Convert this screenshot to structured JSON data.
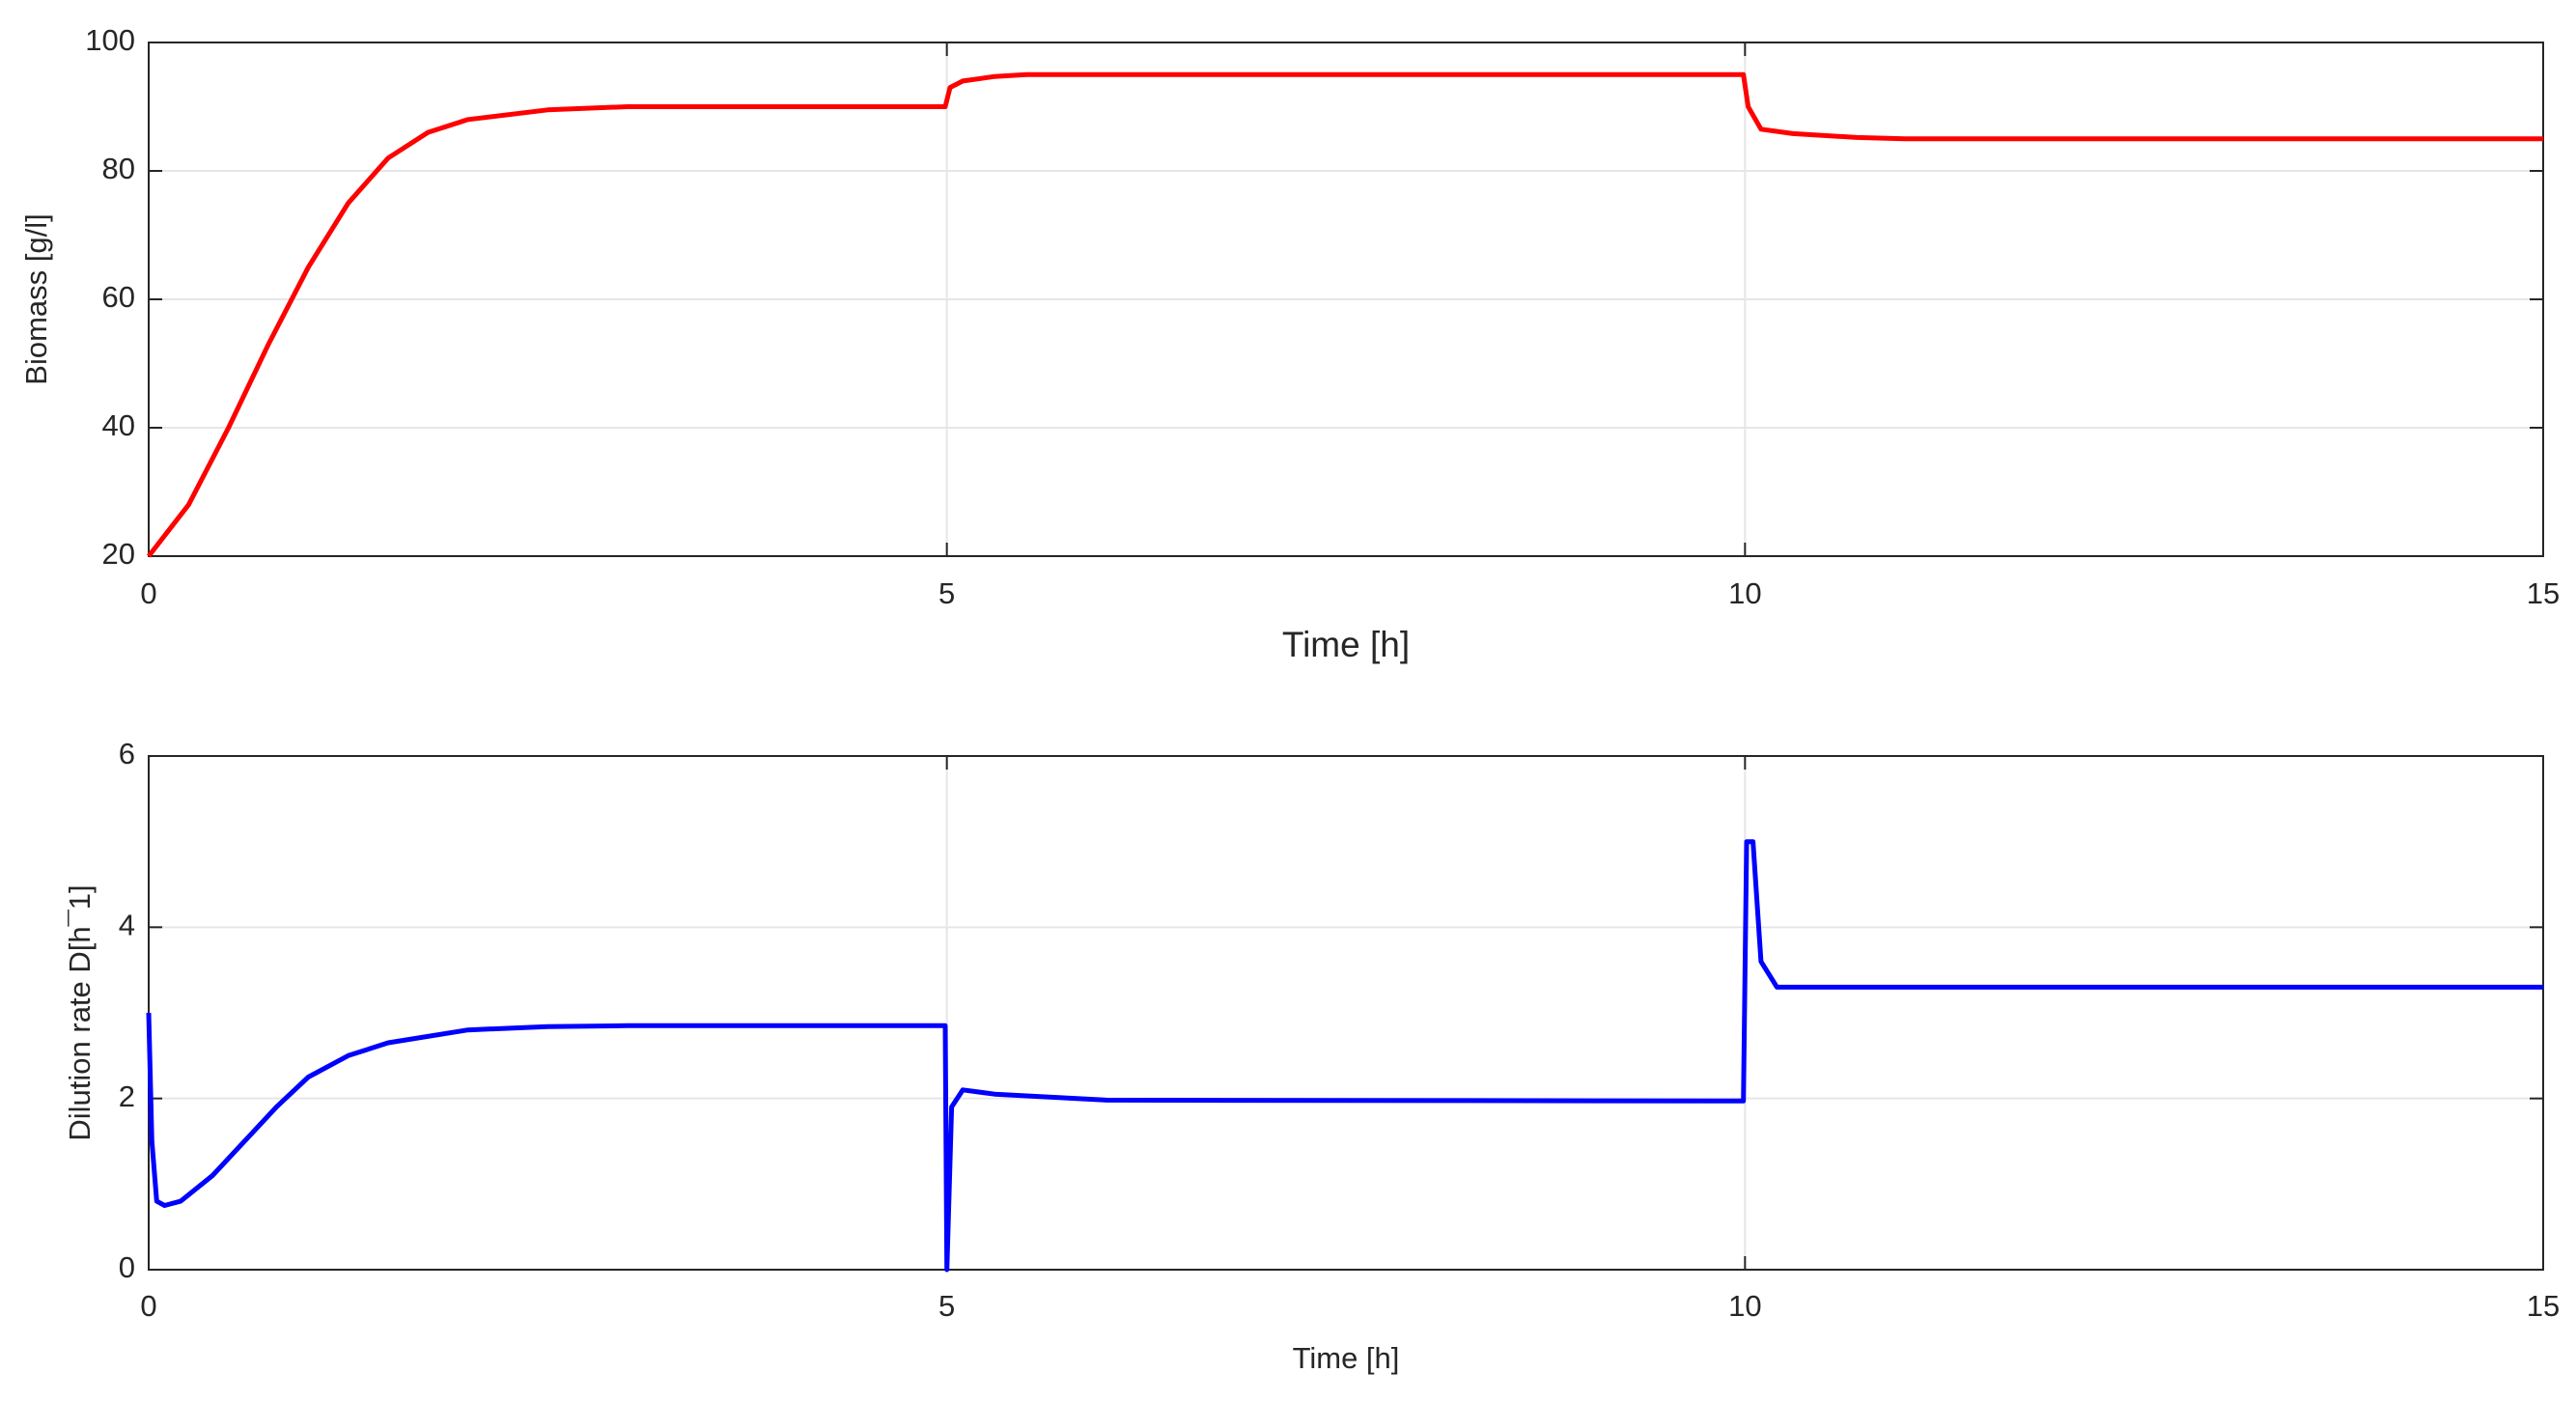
{
  "chart_data": [
    {
      "type": "line",
      "ylabel": "Biomass [g/l]",
      "xlabel": "Time [h]",
      "xlim": [
        0,
        15
      ],
      "ylim": [
        20,
        100
      ],
      "xticks": [
        0,
        5,
        10,
        15
      ],
      "yticks": [
        20,
        40,
        60,
        80,
        100
      ],
      "grid": true,
      "x": [
        0,
        0.25,
        0.5,
        0.75,
        1,
        1.25,
        1.5,
        1.75,
        2,
        2.5,
        3,
        4,
        4.99,
        5.02,
        5.1,
        5.3,
        5.5,
        7,
        9.99,
        10.02,
        10.1,
        10.3,
        10.7,
        11,
        15
      ],
      "series": [
        {
          "name": "Biomass",
          "color": "#ff0000",
          "values": [
            20,
            28,
            40,
            53,
            65,
            75,
            82,
            86,
            88,
            89.5,
            90,
            90,
            90,
            93,
            94,
            94.7,
            95,
            95,
            95,
            90,
            86.5,
            85.8,
            85.2,
            85,
            85
          ]
        }
      ]
    },
    {
      "type": "line",
      "ylabel": "Dilution rate D[h¯1]",
      "xlabel": "Time [h]",
      "xlim": [
        0,
        15
      ],
      "ylim": [
        0,
        6
      ],
      "xticks": [
        0,
        5,
        10,
        15
      ],
      "yticks": [
        0,
        2,
        4,
        6
      ],
      "grid": true,
      "x": [
        0,
        0.02,
        0.05,
        0.1,
        0.2,
        0.4,
        0.6,
        0.8,
        1,
        1.25,
        1.5,
        2,
        2.5,
        3,
        4.99,
        5,
        5.03,
        5.1,
        5.3,
        6,
        9.99,
        10.01,
        10.05,
        10.1,
        10.2,
        10.5,
        15
      ],
      "series": [
        {
          "name": "Dilution rate",
          "color": "#0000ff",
          "values": [
            3,
            1.5,
            0.8,
            0.75,
            0.8,
            1.1,
            1.5,
            1.9,
            2.25,
            2.5,
            2.65,
            2.8,
            2.84,
            2.85,
            2.85,
            0,
            1.9,
            2.1,
            2.05,
            1.98,
            1.97,
            5,
            5,
            3.6,
            3.3,
            3.3,
            3.3
          ]
        }
      ]
    }
  ]
}
